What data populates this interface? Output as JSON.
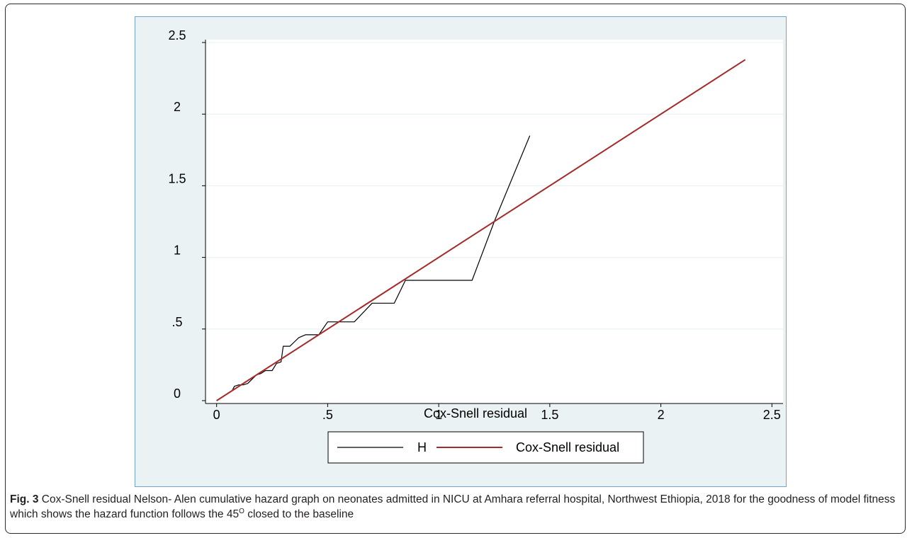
{
  "caption": {
    "label": "Fig. 3",
    "text_before_sup": " Cox-Snell residual Nelson- Alen cumulative hazard graph on neonates admitted in NICU at Amhara referral hospital, Northwest Ethiopia, 2018 for the goodness of model fitness which shows the hazard function follows the 45",
    "sup": "O",
    "text_after_sup": " closed to the baseline"
  },
  "chart_data": {
    "type": "line",
    "title": "",
    "xlabel": "Cox-Snell residual",
    "ylabel": "",
    "xlim": [
      -0.05,
      2.55
    ],
    "ylim": [
      -0.02,
      2.52
    ],
    "x_ticks": [
      0,
      0.5,
      1,
      1.5,
      2,
      2.5
    ],
    "x_tick_labels": [
      "0",
      ".5",
      "1",
      "1.5",
      "2",
      "2.5"
    ],
    "y_ticks": [
      0,
      0.5,
      1,
      1.5,
      2,
      2.5
    ],
    "y_tick_labels": [
      "0",
      ".5",
      "1",
      "1.5",
      "2",
      "2.5"
    ],
    "grid": "horizontal",
    "legend_position": "bottom",
    "colors": {
      "background": "#eaf2f3",
      "plot_area": "#ffffff",
      "H": "#000000",
      "Cox-Snell residual": "#a52a2a"
    },
    "series": [
      {
        "name": "H",
        "x": [
          0,
          0.01,
          0.02,
          0.03,
          0.04,
          0.05,
          0.06,
          0.07,
          0.08,
          0.1,
          0.12,
          0.14,
          0.16,
          0.18,
          0.2,
          0.22,
          0.25,
          0.27,
          0.29,
          0.3,
          0.33,
          0.35,
          0.37,
          0.4,
          0.46,
          0.5,
          0.55,
          0.62,
          0.7,
          0.8,
          0.85,
          1.0,
          1.15,
          1.25,
          1.41
        ],
        "y": [
          0,
          0.01,
          0.02,
          0.03,
          0.04,
          0.05,
          0.06,
          0.07,
          0.1,
          0.11,
          0.11,
          0.12,
          0.15,
          0.18,
          0.19,
          0.21,
          0.21,
          0.26,
          0.27,
          0.38,
          0.38,
          0.41,
          0.44,
          0.46,
          0.46,
          0.55,
          0.55,
          0.55,
          0.68,
          0.68,
          0.84,
          0.84,
          0.84,
          1.25,
          1.85
        ]
      },
      {
        "name": "Cox-Snell residual",
        "x": [
          0,
          2.38
        ],
        "y": [
          0,
          2.38
        ]
      }
    ]
  }
}
